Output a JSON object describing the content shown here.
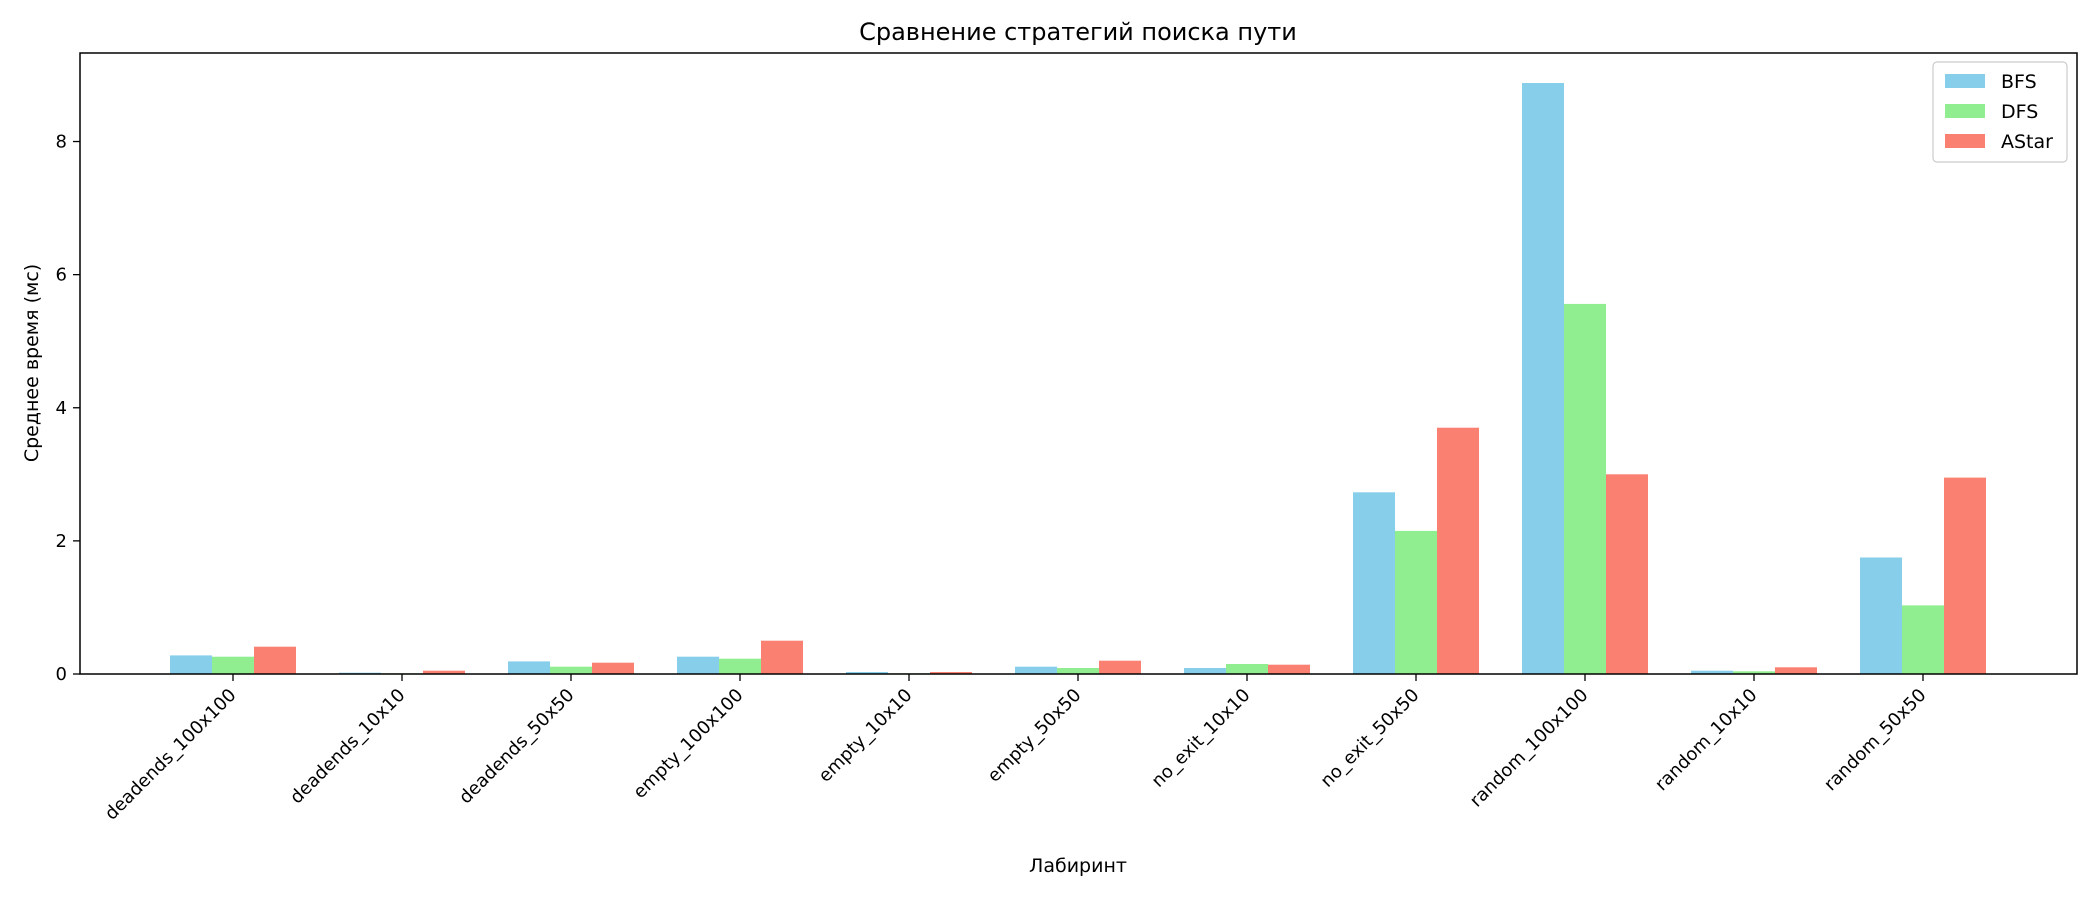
{
  "chart_data": {
    "type": "bar",
    "title": "Сравнение стратегий поиска пути",
    "xlabel": "Лабиринт",
    "ylabel": "Среднее время (мс)",
    "categories": [
      "deadends_100x100",
      "deadends_10x10",
      "deadends_50x50",
      "empty_100x100",
      "empty_10x10",
      "empty_50x50",
      "no_exit_10x10",
      "no_exit_50x50",
      "random_100x100",
      "random_10x10",
      "random_50x50"
    ],
    "series": [
      {
        "name": "BFS",
        "color": "#87ceeb",
        "values": [
          0.28,
          0.02,
          0.19,
          0.26,
          0.03,
          0.11,
          0.09,
          2.73,
          8.88,
          0.05,
          1.75
        ]
      },
      {
        "name": "DFS",
        "color": "#90ee90",
        "values": [
          0.26,
          0.01,
          0.11,
          0.23,
          0.01,
          0.09,
          0.15,
          2.15,
          5.56,
          0.04,
          1.03
        ]
      },
      {
        "name": "AStar",
        "color": "#fa8072",
        "values": [
          0.41,
          0.05,
          0.17,
          0.5,
          0.03,
          0.2,
          0.14,
          3.7,
          3.0,
          0.1,
          2.95
        ]
      }
    ],
    "ylim": [
      0,
      9.33
    ],
    "yticks": [
      0,
      2,
      4,
      6,
      8
    ],
    "grid": false,
    "legend": "upper right"
  }
}
